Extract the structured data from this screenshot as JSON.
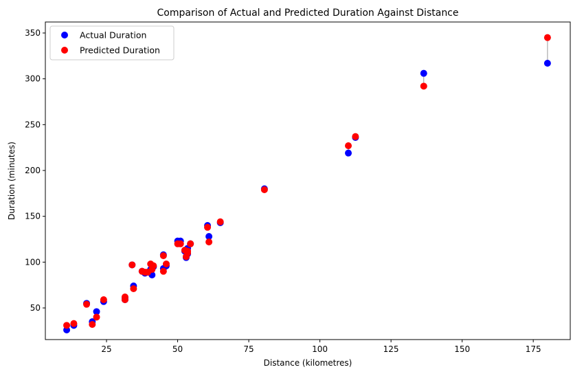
{
  "chart_data": {
    "type": "scatter",
    "title": "Comparison of Actual and Predicted Duration Against Distance",
    "xlabel": "Distance (kilometres)",
    "ylabel": "Duration (minutes)",
    "xlim": [
      3.5,
      188
    ],
    "ylim": [
      15.5,
      362
    ],
    "xticks": [
      25,
      50,
      75,
      100,
      125,
      150,
      175
    ],
    "yticks": [
      50,
      100,
      150,
      200,
      250,
      300,
      350
    ],
    "grid": false,
    "legend_position": "top-left",
    "connectors": {
      "color": "#999999"
    },
    "series": [
      {
        "name": "Actual Duration",
        "color": "#0000ff",
        "points": [
          [
            11,
            26
          ],
          [
            13.5,
            31
          ],
          [
            18,
            55
          ],
          [
            20,
            35
          ],
          [
            21.5,
            46
          ],
          [
            24,
            57
          ],
          [
            31.5,
            61
          ],
          [
            31.5,
            59
          ],
          [
            34,
            97
          ],
          [
            34.5,
            74
          ],
          [
            37.5,
            90
          ],
          [
            38.5,
            88
          ],
          [
            39.5,
            89
          ],
          [
            40.5,
            92
          ],
          [
            41,
            86
          ],
          [
            41.5,
            95
          ],
          [
            45,
            108
          ],
          [
            45,
            93
          ],
          [
            46,
            96
          ],
          [
            50,
            123
          ],
          [
            51,
            123
          ],
          [
            52.5,
            112
          ],
          [
            53,
            105
          ],
          [
            53.5,
            109
          ],
          [
            53.5,
            115
          ],
          [
            54.5,
            120
          ],
          [
            60.5,
            140
          ],
          [
            61,
            128
          ],
          [
            65,
            143
          ],
          [
            80.5,
            180
          ],
          [
            110,
            219
          ],
          [
            112.5,
            236
          ],
          [
            136.5,
            306
          ],
          [
            180,
            317
          ]
        ]
      },
      {
        "name": "Predicted Duration",
        "color": "#ff0000",
        "points": [
          [
            11,
            31
          ],
          [
            13.5,
            33
          ],
          [
            18,
            54
          ],
          [
            20,
            32
          ],
          [
            21.5,
            40
          ],
          [
            24,
            59
          ],
          [
            31.5,
            62
          ],
          [
            31.5,
            59
          ],
          [
            34,
            97
          ],
          [
            34.5,
            71
          ],
          [
            37.5,
            90
          ],
          [
            38.5,
            89
          ],
          [
            39.5,
            89
          ],
          [
            40.5,
            98
          ],
          [
            41,
            92
          ],
          [
            41.5,
            96
          ],
          [
            45,
            107
          ],
          [
            45,
            90
          ],
          [
            46,
            98
          ],
          [
            50,
            120
          ],
          [
            51,
            120
          ],
          [
            52.5,
            113
          ],
          [
            53,
            106
          ],
          [
            53.5,
            112
          ],
          [
            53.5,
            110
          ],
          [
            54.5,
            120
          ],
          [
            60.5,
            138
          ],
          [
            61,
            122
          ],
          [
            65,
            144
          ],
          [
            80.5,
            179
          ],
          [
            110,
            227
          ],
          [
            112.5,
            237
          ],
          [
            136.5,
            292
          ],
          [
            180,
            345
          ]
        ]
      }
    ]
  }
}
